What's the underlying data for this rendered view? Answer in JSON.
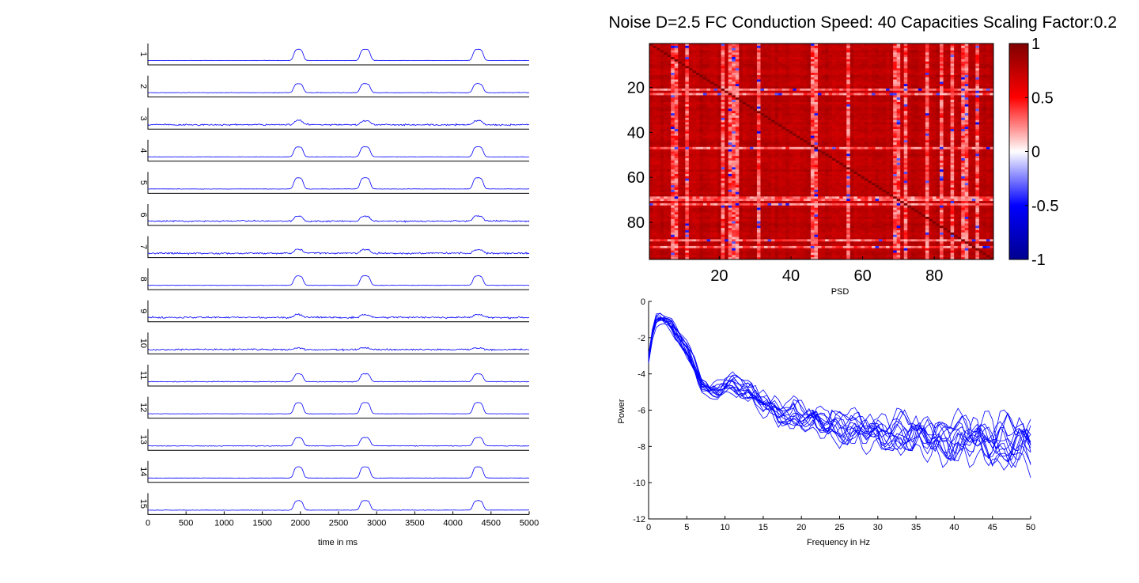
{
  "figure": {
    "title": "Noise D=2.5 FC Conduction Speed: 40  Capacities Scaling Factor:0.2"
  },
  "colors": {
    "trace": "#0000ff",
    "axis": "#000000",
    "cmap_neg": "#00008f",
    "cmap_zero": "#ffffff",
    "cmap_pos": "#7f0000"
  },
  "chart_data": [
    {
      "type": "line",
      "title": "",
      "xlabel": "time in ms",
      "ylabel": "",
      "xlim": [
        0,
        5000
      ],
      "x_ticks": [
        0,
        500,
        1000,
        1500,
        2000,
        2500,
        3000,
        3500,
        4000,
        4500,
        5000
      ],
      "channel_labels": [
        "1",
        "2",
        "3",
        "4",
        "5",
        "6",
        "7",
        "8",
        "9",
        "10",
        "11",
        "12",
        "13",
        "14",
        "15"
      ],
      "events_ms": [
        [
          1950,
          2000
        ],
        [
          2820,
          2880
        ],
        [
          4300,
          4360
        ]
      ],
      "channel_response": [
        1.0,
        0.8,
        0.35,
        0.9,
        1.0,
        0.45,
        0.3,
        0.85,
        0.25,
        0.15,
        0.7,
        1.0,
        0.75,
        1.0,
        0.85
      ],
      "channel_noise": [
        0.08,
        0.12,
        0.35,
        0.08,
        0.07,
        0.3,
        0.4,
        0.1,
        0.38,
        0.35,
        0.18,
        0.08,
        0.15,
        0.06,
        0.1
      ],
      "grid": false
    },
    {
      "type": "heatmap",
      "title": "",
      "n_nodes": 96,
      "x_ticks": [
        20,
        40,
        60,
        80
      ],
      "y_ticks": [
        20,
        40,
        60,
        80
      ],
      "clim": [
        -1,
        1
      ],
      "colorbar_ticks": [
        1,
        0.5,
        0,
        -0.5,
        -1
      ],
      "colorbar_labels": [
        "1",
        "0.5",
        "0",
        "-0.5",
        "-1"
      ],
      "typical_value": 0.85,
      "weak_nodes": [
        7,
        8,
        11,
        21,
        23,
        24,
        25,
        31,
        46,
        47,
        56,
        69,
        70,
        72,
        78,
        82,
        85,
        88,
        89,
        92
      ],
      "weak_rows": [
        21,
        23,
        47,
        69,
        70,
        72,
        88,
        91
      ]
    },
    {
      "type": "line",
      "title": "PSD",
      "xlabel": "Frequency in Hz",
      "ylabel": "Power",
      "xlim": [
        0,
        50
      ],
      "ylim": [
        -12,
        0
      ],
      "x_ticks": [
        0,
        5,
        10,
        15,
        20,
        25,
        30,
        35,
        40,
        45,
        50
      ],
      "y_ticks": [
        0,
        -2,
        -4,
        -6,
        -8,
        -10,
        -12
      ],
      "n_series": 15,
      "mean_curve": {
        "x": [
          0,
          0.5,
          1,
          1.5,
          2,
          3,
          4,
          5,
          6,
          7,
          8,
          9,
          10,
          11,
          12,
          13,
          15,
          17,
          20,
          23,
          25,
          28,
          30,
          33,
          35,
          38,
          40,
          43,
          45,
          48,
          50
        ],
        "y": [
          -3.2,
          -1.8,
          -1.0,
          -0.9,
          -1.0,
          -1.3,
          -1.9,
          -2.7,
          -3.6,
          -4.6,
          -5.0,
          -4.9,
          -4.6,
          -4.5,
          -4.7,
          -5.0,
          -5.6,
          -6.1,
          -6.4,
          -6.7,
          -6.9,
          -7.1,
          -7.2,
          -7.3,
          -7.4,
          -7.5,
          -7.6,
          -7.6,
          -7.7,
          -7.8,
          -7.9
        ]
      },
      "grid": false
    }
  ]
}
